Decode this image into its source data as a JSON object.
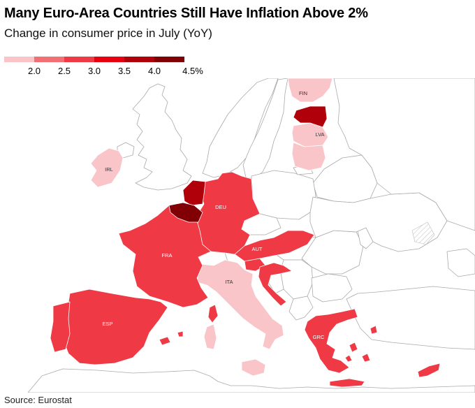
{
  "title": "Many Euro-Area Countries Still Have Inflation Above 2%",
  "subtitle": "Change in consumer price in July (YoY)",
  "legend": {
    "colors": [
      "#f9c5c9",
      "#f36f76",
      "#ef3a45",
      "#e80011",
      "#b00009",
      "#800006"
    ],
    "labels": [
      "2.0",
      "2.5",
      "3.0",
      "3.5",
      "4.0",
      "4.5%"
    ]
  },
  "labels": {
    "fin": "FIN",
    "lva": "LVA",
    "irl": "IRL",
    "deu": "DEU",
    "fra": "FRA",
    "aut": "AUT",
    "ita": "ITA",
    "esp": "ESP",
    "grc": "GRC"
  },
  "colors": {
    "land": "#ffffff",
    "border": "#a9a9a9",
    "bin_2_0": "#f9c5c9",
    "bin_3_0": "#ef3a45",
    "bin_4_0": "#b00009",
    "bin_4_5": "#800006"
  },
  "source": "Source: Eurostat"
}
